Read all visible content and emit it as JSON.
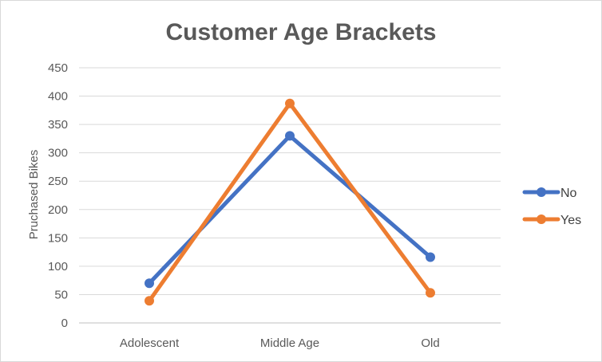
{
  "chart_data": {
    "type": "line",
    "title": "Customer Age Brackets",
    "xlabel": "",
    "ylabel": "Pruchased Bikes",
    "categories": [
      "Adolescent",
      "Middle Age",
      "Old"
    ],
    "series": [
      {
        "name": "No",
        "values": [
          70,
          330,
          116
        ],
        "color": "#4472c4"
      },
      {
        "name": "Yes",
        "values": [
          39,
          387,
          53
        ],
        "color": "#ed7d31"
      }
    ],
    "ylim": [
      0,
      450
    ],
    "yticks": [
      0,
      50,
      100,
      150,
      200,
      250,
      300,
      350,
      400,
      450
    ],
    "grid": true,
    "legend_position": "right"
  }
}
